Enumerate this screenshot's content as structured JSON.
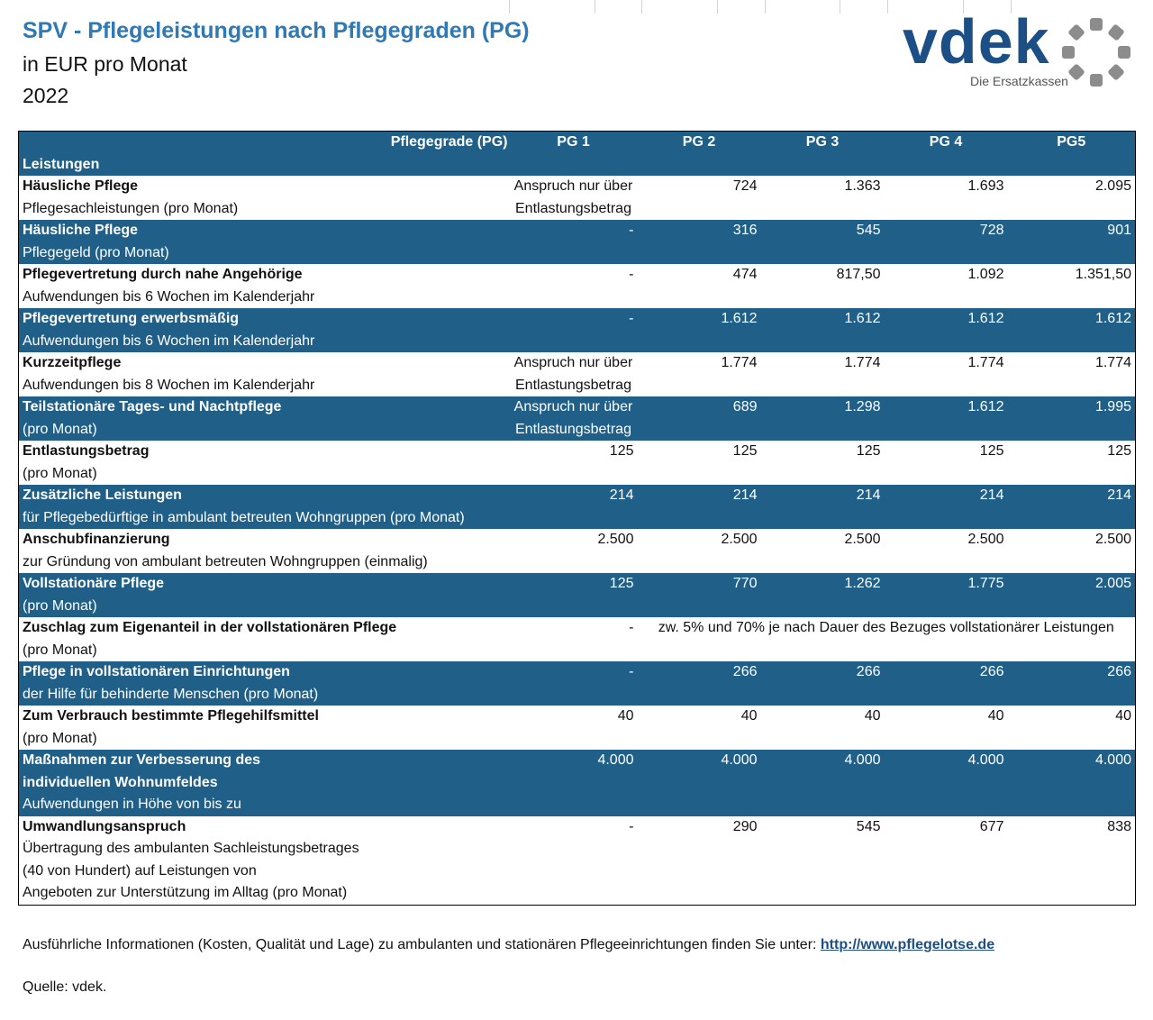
{
  "header": {
    "title": "SPV - Pflegeleistungen nach Pflegegraden (PG)",
    "subtitle": "in EUR pro Monat",
    "year": "2022"
  },
  "logo": {
    "wordmark": "vdek",
    "tagline": "Die Ersatzkassen",
    "colors": {
      "primary": "#1b4f86",
      "ring": "#8c8c8c"
    }
  },
  "table": {
    "header_pg": "Pflegegrade (PG)",
    "header_leistungen": "Leistungen",
    "columns": [
      "PG 1",
      "PG 2",
      "PG 3",
      "PG 4",
      "PG5"
    ],
    "colors": {
      "dark_row": "#1f5f88",
      "light_row": "#ffffff"
    },
    "rows": [
      {
        "title": "Häusliche Pflege",
        "subtitle": "Pflegesachleistungen (pro Monat)",
        "pg1": "Anspruch nur über",
        "pg1b": "Entlastungsbetrag",
        "pg2": "724",
        "pg3": "1.363",
        "pg4": "1.693",
        "pg5": "2.095"
      },
      {
        "title": "Häusliche Pflege",
        "subtitle": "Pflegegeld (pro Monat)",
        "pg1": "-",
        "pg2": "316",
        "pg3": "545",
        "pg4": "728",
        "pg5": "901"
      },
      {
        "title": "Pflegevertretung durch nahe Angehörige",
        "subtitle": "Aufwendungen bis 6 Wochen im Kalenderjahr",
        "pg1": "-",
        "pg2": "474",
        "pg3": "817,50",
        "pg4": "1.092",
        "pg5": "1.351,50"
      },
      {
        "title": "Pflegevertretung erwerbsmäßig",
        "subtitle": "Aufwendungen bis 6 Wochen im Kalenderjahr",
        "pg1": "-",
        "pg2": "1.612",
        "pg3": "1.612",
        "pg4": "1.612",
        "pg5": "1.612"
      },
      {
        "title": "Kurzzeitpflege",
        "subtitle": "Aufwendungen bis 8 Wochen im Kalenderjahr",
        "pg1": "Anspruch nur über",
        "pg1b": "Entlastungsbetrag",
        "pg2": "1.774",
        "pg3": "1.774",
        "pg4": "1.774",
        "pg5": "1.774"
      },
      {
        "title": "Teilstationäre Tages- und Nachtpflege",
        "subtitle": "(pro Monat)",
        "pg1": "Anspruch nur über",
        "pg1b": "Entlastungsbetrag",
        "pg2": "689",
        "pg3": "1.298",
        "pg4": "1.612",
        "pg5": "1.995"
      },
      {
        "title": "Entlastungsbetrag",
        "subtitle": "(pro Monat)",
        "pg1": "125",
        "pg2": "125",
        "pg3": "125",
        "pg4": "125",
        "pg5": "125"
      },
      {
        "title": "Zusätzliche Leistungen",
        "subtitle": "für Pflegebedürftige in ambulant betreuten Wohngruppen (pro Monat)",
        "pg1": "214",
        "pg2": "214",
        "pg3": "214",
        "pg4": "214",
        "pg5": "214"
      },
      {
        "title": "Anschubfinanzierung",
        "subtitle": "zur Gründung von ambulant betreuten Wohngruppen (einmalig)",
        "pg1": "2.500",
        "pg2": "2.500",
        "pg3": "2.500",
        "pg4": "2.500",
        "pg5": "2.500"
      },
      {
        "title": "Vollstationäre Pflege",
        "subtitle": "(pro Monat)",
        "pg1": "125",
        "pg2": "770",
        "pg3": "1.262",
        "pg4": "1.775",
        "pg5": "2.005"
      },
      {
        "title": "Zuschlag zum Eigenanteil in der vollstationären Pflege",
        "subtitle": "(pro Monat)",
        "pg1": "-",
        "merged": "zw. 5% und 70% je nach Dauer des Bezuges vollstationärer Leistungen"
      },
      {
        "title": "Pflege in vollstationären Einrichtungen",
        "subtitle": "der Hilfe für behinderte Menschen (pro Monat)",
        "pg1": "-",
        "pg2": "266",
        "pg3": "266",
        "pg4": "266",
        "pg5": "266"
      },
      {
        "title": "Zum Verbrauch bestimmte Pflegehilfsmittel",
        "subtitle": "(pro Monat)",
        "pg1": "40",
        "pg2": "40",
        "pg3": "40",
        "pg4": "40",
        "pg5": "40"
      },
      {
        "title": "Maßnahmen zur Verbesserung des",
        "title2": "individuellen Wohnumfeldes",
        "subtitle": "Aufwendungen in Höhe von bis zu",
        "pg1": "4.000",
        "pg2": "4.000",
        "pg3": "4.000",
        "pg4": "4.000",
        "pg5": "4.000"
      },
      {
        "title": "Umwandlungsanspruch",
        "subtitle": "Übertragung des ambulanten Sachleistungsbetrages",
        "subtitle2": "(40 von Hundert) auf Leistungen von",
        "subtitle3": "Angeboten zur Unterstützung im Alltag (pro Monat)",
        "pg1": "-",
        "pg2": "290",
        "pg3": "545",
        "pg4": "677",
        "pg5": "838"
      }
    ]
  },
  "footer": {
    "info_text": "Ausführliche Informationen (Kosten, Qualität und Lage) zu ambulanten und stationären Pflegeeinrichtungen finden Sie unter: ",
    "link_text": "http://www.pflegelotse.de",
    "source": "Quelle: vdek."
  }
}
